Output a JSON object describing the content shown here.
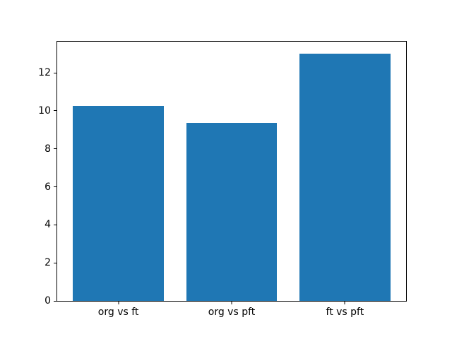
{
  "figure": {
    "background": "#ffffff",
    "axes_background": "#ffffff",
    "spine_color": "#000000"
  },
  "chart_data": {
    "type": "bar",
    "title": "",
    "xlabel": "",
    "ylabel": "",
    "categories": [
      "org vs ft",
      "org vs pft",
      "ft vs pft"
    ],
    "values": [
      10.25,
      9.35,
      13.0
    ],
    "yticks": [
      0,
      2,
      4,
      6,
      8,
      10,
      12
    ],
    "ylim": [
      0,
      13.65
    ],
    "bar_color": "#1f77b4",
    "tick_label_color": "#000000",
    "bar_width_fraction": 0.8,
    "x_margin_fraction": 0.05,
    "grid": false,
    "legend": false
  }
}
